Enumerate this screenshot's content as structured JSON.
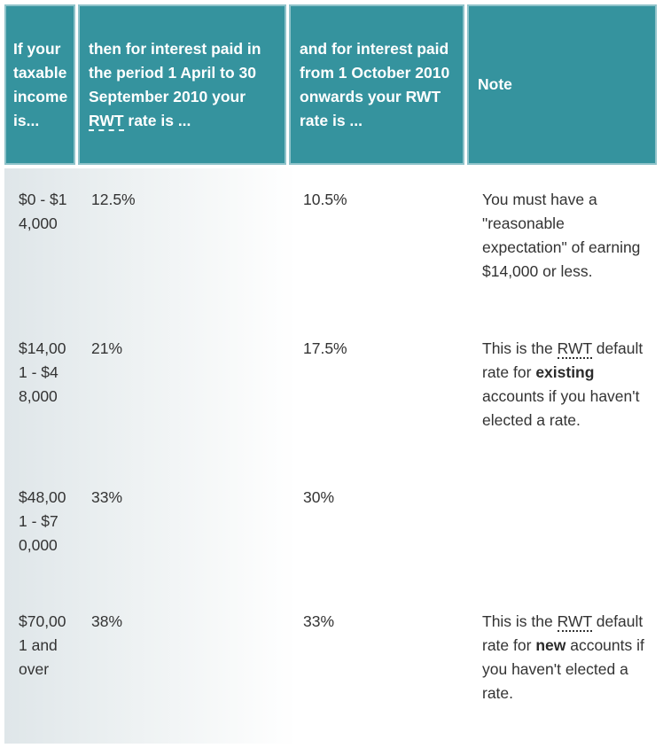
{
  "headers": {
    "income": "If your taxable income is...",
    "rate_period1_pre": "then for interest paid in the period 1 April to 30 September 2010 your ",
    "rate_period1_abbr": "RWT",
    "rate_period1_post": " rate is ...",
    "rate_period2": "and for interest paid from 1 October 2010 onwards your RWT rate is ...",
    "note": "Note"
  },
  "rows": [
    {
      "income": "$0 - $14,000",
      "rate1": "12.5%",
      "rate2": "10.5%",
      "note": {
        "text": "You must have a \"reasonable expectation\" of earning $14,000 or less."
      }
    },
    {
      "income": "$14,001 - $48,000",
      "rate1": "21%",
      "rate2": "17.5%",
      "note": {
        "pre": "This is the ",
        "abbr": "RWT",
        "mid": " default rate for ",
        "bold": "existing",
        "post": " accounts if you haven't elected a rate."
      }
    },
    {
      "income": "$48,001 - $70,000",
      "rate1": "33%",
      "rate2": "30%",
      "note": {
        "text": ""
      }
    },
    {
      "income": "$70,001 and over",
      "rate1": "38%",
      "rate2": "33%",
      "note": {
        "pre": "This is the ",
        "abbr": "RWT",
        "mid": " default rate for ",
        "bold": "new",
        "post": " accounts if you haven't elected a rate."
      }
    }
  ],
  "colors": {
    "header_bg": "#35939e",
    "header_border": "#8fc3ca",
    "text": "#333333"
  }
}
